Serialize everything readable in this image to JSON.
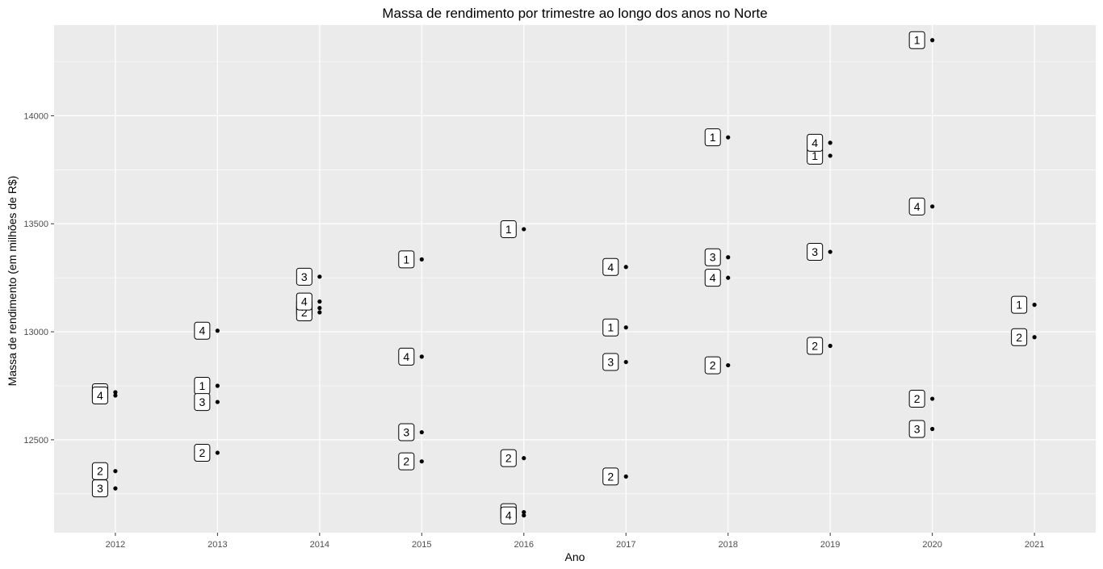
{
  "chart_data": {
    "type": "scatter",
    "title": "Massa de rendimento por trimestre ao longo dos anos no Norte",
    "xlabel": "Ano",
    "ylabel": "Massa de rendimento (em milhões de R$)",
    "x_ticks": [
      "2012",
      "2013",
      "2014",
      "2015",
      "2016",
      "2017",
      "2018",
      "2019",
      "2020",
      "2021"
    ],
    "y_ticks": [
      12500,
      13000,
      13500,
      14000
    ],
    "xlim": [
      2011.4,
      2021.6
    ],
    "ylim": [
      12070,
      14420
    ],
    "grid": true,
    "point_labels": "quarter number",
    "points": [
      {
        "x": 2012,
        "quarter": "1",
        "y": 12720
      },
      {
        "x": 2012,
        "quarter": "2",
        "y": 12355
      },
      {
        "x": 2012,
        "quarter": "3",
        "y": 12275
      },
      {
        "x": 2012,
        "quarter": "4",
        "y": 12705
      },
      {
        "x": 2013,
        "quarter": "1",
        "y": 12750
      },
      {
        "x": 2013,
        "quarter": "2",
        "y": 12440
      },
      {
        "x": 2013,
        "quarter": "3",
        "y": 12675
      },
      {
        "x": 2013,
        "quarter": "4",
        "y": 13005
      },
      {
        "x": 2014,
        "quarter": "1",
        "y": 13110
      },
      {
        "x": 2014,
        "quarter": "2",
        "y": 13090
      },
      {
        "x": 2014,
        "quarter": "3",
        "y": 13255
      },
      {
        "x": 2014,
        "quarter": "4",
        "y": 13140
      },
      {
        "x": 2015,
        "quarter": "1",
        "y": 13335
      },
      {
        "x": 2015,
        "quarter": "2",
        "y": 12400
      },
      {
        "x": 2015,
        "quarter": "3",
        "y": 12535
      },
      {
        "x": 2015,
        "quarter": "4",
        "y": 12885
      },
      {
        "x": 2016,
        "quarter": "1",
        "y": 13475
      },
      {
        "x": 2016,
        "quarter": "2",
        "y": 12415
      },
      {
        "x": 2016,
        "quarter": "3",
        "y": 12165
      },
      {
        "x": 2016,
        "quarter": "4",
        "y": 12150
      },
      {
        "x": 2017,
        "quarter": "1",
        "y": 13020
      },
      {
        "x": 2017,
        "quarter": "2",
        "y": 12330
      },
      {
        "x": 2017,
        "quarter": "3",
        "y": 12860
      },
      {
        "x": 2017,
        "quarter": "4",
        "y": 13300
      },
      {
        "x": 2018,
        "quarter": "1",
        "y": 13900
      },
      {
        "x": 2018,
        "quarter": "2",
        "y": 12845
      },
      {
        "x": 2018,
        "quarter": "3",
        "y": 13345
      },
      {
        "x": 2018,
        "quarter": "4",
        "y": 13250
      },
      {
        "x": 2019,
        "quarter": "1",
        "y": 13815
      },
      {
        "x": 2019,
        "quarter": "2",
        "y": 12935
      },
      {
        "x": 2019,
        "quarter": "3",
        "y": 13370
      },
      {
        "x": 2019,
        "quarter": "4",
        "y": 13875
      },
      {
        "x": 2020,
        "quarter": "1",
        "y": 14350
      },
      {
        "x": 2020,
        "quarter": "2",
        "y": 12690
      },
      {
        "x": 2020,
        "quarter": "3",
        "y": 12550
      },
      {
        "x": 2020,
        "quarter": "4",
        "y": 13580
      },
      {
        "x": 2021,
        "quarter": "1",
        "y": 13125
      },
      {
        "x": 2021,
        "quarter": "2",
        "y": 12975
      }
    ]
  },
  "colors": {
    "panel_background": "#ebebeb",
    "grid_major": "#ffffff",
    "point": "#000000",
    "label_fill": "#ffffff",
    "label_border": "#000000",
    "tick_text": "#4d4d4d"
  }
}
